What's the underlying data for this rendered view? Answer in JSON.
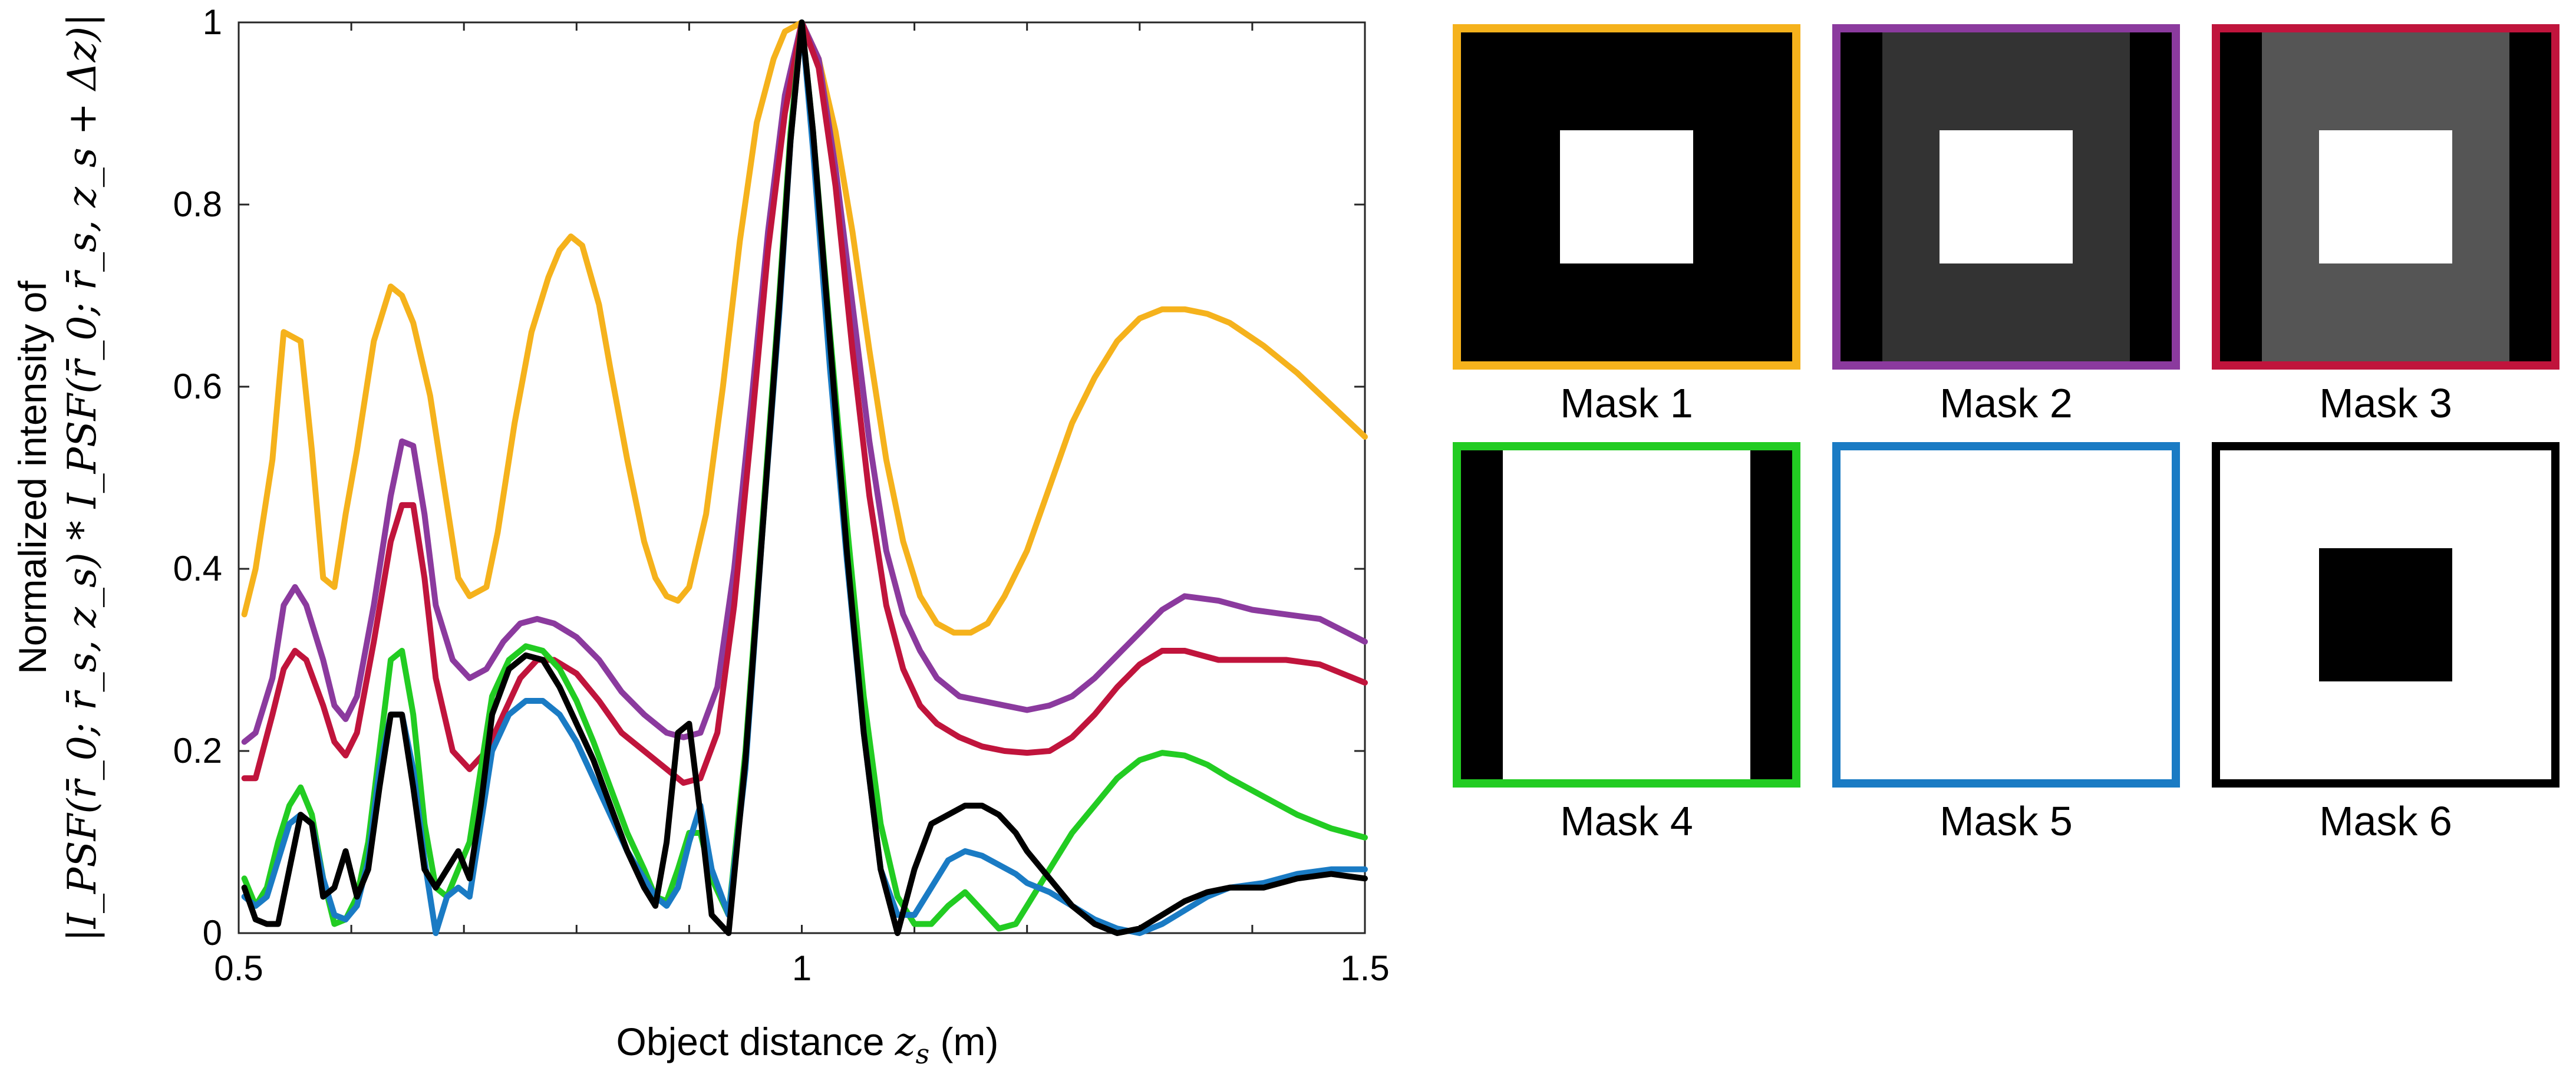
{
  "chart_data": {
    "type": "line",
    "title": "",
    "xlabel": "Object distance z_s (m)",
    "xlabel_parts": [
      "Object distance ",
      "z",
      "s",
      " (m)"
    ],
    "ylabel_line1": "Normalized intensity of",
    "ylabel_line2": "|I_PSF(r̄_0; r̄_s, z_s) * I_PSF(r̄_0; r̄_s, z_s + Δz)|",
    "xlim": [
      0.5,
      1.5
    ],
    "ylim": [
      0,
      1
    ],
    "xticks": [
      0.5,
      1,
      1.5
    ],
    "xtick_labels": [
      "0.5",
      "1",
      "1.5"
    ],
    "yticks": [
      0,
      0.2,
      0.4,
      0.6,
      0.8,
      1
    ],
    "ytick_labels": [
      "0",
      "0.2",
      "0.4",
      "0.6",
      "0.8",
      "1"
    ],
    "grid": false,
    "legend": "right (mask panels)",
    "series": [
      {
        "name": "Mask 1",
        "color": "#F5B21C",
        "x": [
          0.505,
          0.515,
          0.53,
          0.54,
          0.555,
          0.565,
          0.575,
          0.585,
          0.595,
          0.605,
          0.62,
          0.635,
          0.645,
          0.655,
          0.67,
          0.685,
          0.695,
          0.705,
          0.72,
          0.73,
          0.745,
          0.76,
          0.775,
          0.785,
          0.795,
          0.805,
          0.82,
          0.83,
          0.845,
          0.86,
          0.87,
          0.88,
          0.89,
          0.9,
          0.915,
          0.93,
          0.945,
          0.96,
          0.975,
          0.985,
          1.0,
          1.015,
          1.03,
          1.045,
          1.06,
          1.075,
          1.09,
          1.105,
          1.12,
          1.135,
          1.15,
          1.165,
          1.18,
          1.2,
          1.22,
          1.24,
          1.26,
          1.28,
          1.3,
          1.32,
          1.34,
          1.36,
          1.38,
          1.41,
          1.44,
          1.47,
          1.5
        ],
        "y": [
          0.35,
          0.4,
          0.52,
          0.66,
          0.65,
          0.53,
          0.39,
          0.38,
          0.46,
          0.53,
          0.65,
          0.71,
          0.7,
          0.67,
          0.59,
          0.47,
          0.39,
          0.37,
          0.38,
          0.44,
          0.56,
          0.66,
          0.72,
          0.75,
          0.765,
          0.755,
          0.69,
          0.62,
          0.52,
          0.43,
          0.39,
          0.37,
          0.365,
          0.38,
          0.46,
          0.6,
          0.76,
          0.89,
          0.96,
          0.99,
          1.0,
          0.96,
          0.88,
          0.77,
          0.64,
          0.52,
          0.43,
          0.37,
          0.34,
          0.33,
          0.33,
          0.34,
          0.37,
          0.42,
          0.49,
          0.56,
          0.61,
          0.65,
          0.675,
          0.685,
          0.685,
          0.68,
          0.67,
          0.645,
          0.615,
          0.58,
          0.545
        ]
      },
      {
        "name": "Mask 2",
        "color": "#8B3A9E",
        "x": [
          0.505,
          0.515,
          0.53,
          0.54,
          0.55,
          0.56,
          0.575,
          0.585,
          0.595,
          0.605,
          0.62,
          0.635,
          0.645,
          0.655,
          0.665,
          0.675,
          0.69,
          0.705,
          0.72,
          0.735,
          0.75,
          0.765,
          0.78,
          0.8,
          0.82,
          0.84,
          0.86,
          0.88,
          0.895,
          0.91,
          0.925,
          0.94,
          0.955,
          0.97,
          0.985,
          1.0,
          1.015,
          1.03,
          1.045,
          1.06,
          1.075,
          1.09,
          1.105,
          1.12,
          1.14,
          1.16,
          1.18,
          1.2,
          1.22,
          1.24,
          1.26,
          1.28,
          1.3,
          1.32,
          1.34,
          1.37,
          1.4,
          1.43,
          1.46,
          1.5
        ],
        "y": [
          0.21,
          0.22,
          0.28,
          0.36,
          0.38,
          0.36,
          0.3,
          0.25,
          0.235,
          0.26,
          0.36,
          0.48,
          0.54,
          0.535,
          0.46,
          0.36,
          0.3,
          0.28,
          0.29,
          0.32,
          0.34,
          0.345,
          0.34,
          0.325,
          0.3,
          0.265,
          0.24,
          0.22,
          0.215,
          0.22,
          0.27,
          0.4,
          0.58,
          0.77,
          0.92,
          1.0,
          0.96,
          0.84,
          0.69,
          0.54,
          0.42,
          0.35,
          0.31,
          0.28,
          0.26,
          0.255,
          0.25,
          0.245,
          0.25,
          0.26,
          0.28,
          0.305,
          0.33,
          0.355,
          0.37,
          0.365,
          0.355,
          0.35,
          0.345,
          0.32
        ]
      },
      {
        "name": "Mask 3",
        "color": "#C0143C",
        "x": [
          0.505,
          0.515,
          0.53,
          0.54,
          0.55,
          0.56,
          0.575,
          0.585,
          0.595,
          0.605,
          0.62,
          0.635,
          0.645,
          0.655,
          0.665,
          0.675,
          0.69,
          0.705,
          0.72,
          0.735,
          0.75,
          0.765,
          0.78,
          0.8,
          0.82,
          0.84,
          0.86,
          0.88,
          0.895,
          0.91,
          0.925,
          0.94,
          0.955,
          0.97,
          0.985,
          1.0,
          1.015,
          1.03,
          1.045,
          1.06,
          1.075,
          1.09,
          1.105,
          1.12,
          1.14,
          1.16,
          1.18,
          1.2,
          1.22,
          1.24,
          1.26,
          1.28,
          1.3,
          1.32,
          1.34,
          1.37,
          1.4,
          1.43,
          1.46,
          1.5
        ],
        "y": [
          0.17,
          0.17,
          0.24,
          0.29,
          0.31,
          0.3,
          0.25,
          0.21,
          0.195,
          0.22,
          0.32,
          0.43,
          0.47,
          0.47,
          0.39,
          0.28,
          0.2,
          0.18,
          0.2,
          0.24,
          0.28,
          0.3,
          0.3,
          0.285,
          0.255,
          0.22,
          0.2,
          0.18,
          0.165,
          0.17,
          0.22,
          0.36,
          0.55,
          0.75,
          0.9,
          1.0,
          0.95,
          0.82,
          0.64,
          0.48,
          0.36,
          0.29,
          0.25,
          0.23,
          0.215,
          0.205,
          0.2,
          0.198,
          0.2,
          0.215,
          0.24,
          0.27,
          0.295,
          0.31,
          0.31,
          0.3,
          0.3,
          0.3,
          0.295,
          0.275
        ]
      },
      {
        "name": "Mask 4",
        "color": "#22CC22",
        "x": [
          0.505,
          0.515,
          0.525,
          0.535,
          0.545,
          0.555,
          0.565,
          0.575,
          0.585,
          0.595,
          0.605,
          0.615,
          0.625,
          0.635,
          0.645,
          0.655,
          0.665,
          0.675,
          0.685,
          0.695,
          0.705,
          0.715,
          0.725,
          0.74,
          0.755,
          0.77,
          0.785,
          0.8,
          0.815,
          0.83,
          0.845,
          0.86,
          0.87,
          0.88,
          0.89,
          0.9,
          0.91,
          0.92,
          0.935,
          0.95,
          0.965,
          0.98,
          0.99,
          1.0,
          1.01,
          1.025,
          1.04,
          1.055,
          1.07,
          1.085,
          1.1,
          1.115,
          1.13,
          1.145,
          1.16,
          1.175,
          1.19,
          1.2,
          1.22,
          1.24,
          1.26,
          1.28,
          1.3,
          1.32,
          1.34,
          1.36,
          1.38,
          1.41,
          1.44,
          1.47,
          1.5
        ],
        "y": [
          0.06,
          0.03,
          0.05,
          0.1,
          0.14,
          0.16,
          0.13,
          0.06,
          0.01,
          0.015,
          0.04,
          0.1,
          0.2,
          0.3,
          0.31,
          0.24,
          0.12,
          0.05,
          0.04,
          0.07,
          0.1,
          0.18,
          0.26,
          0.3,
          0.315,
          0.31,
          0.29,
          0.255,
          0.21,
          0.16,
          0.11,
          0.07,
          0.04,
          0.035,
          0.07,
          0.11,
          0.11,
          0.06,
          0.02,
          0.2,
          0.45,
          0.7,
          0.88,
          1.0,
          0.88,
          0.66,
          0.45,
          0.26,
          0.12,
          0.04,
          0.01,
          0.01,
          0.03,
          0.045,
          0.025,
          0.005,
          0.01,
          0.03,
          0.07,
          0.11,
          0.14,
          0.17,
          0.19,
          0.198,
          0.195,
          0.185,
          0.17,
          0.15,
          0.13,
          0.115,
          0.105
        ]
      },
      {
        "name": "Mask 5",
        "color": "#1A7BC4",
        "x": [
          0.505,
          0.515,
          0.525,
          0.535,
          0.545,
          0.555,
          0.565,
          0.575,
          0.585,
          0.595,
          0.605,
          0.615,
          0.625,
          0.635,
          0.645,
          0.655,
          0.665,
          0.675,
          0.685,
          0.695,
          0.705,
          0.715,
          0.725,
          0.74,
          0.755,
          0.77,
          0.785,
          0.8,
          0.815,
          0.83,
          0.845,
          0.86,
          0.87,
          0.88,
          0.89,
          0.9,
          0.91,
          0.92,
          0.935,
          0.95,
          0.965,
          0.98,
          0.99,
          1.0,
          1.01,
          1.025,
          1.04,
          1.055,
          1.07,
          1.085,
          1.1,
          1.115,
          1.13,
          1.145,
          1.16,
          1.175,
          1.19,
          1.2,
          1.22,
          1.24,
          1.26,
          1.28,
          1.3,
          1.32,
          1.34,
          1.36,
          1.38,
          1.41,
          1.44,
          1.47,
          1.5
        ],
        "y": [
          0.04,
          0.03,
          0.04,
          0.08,
          0.12,
          0.13,
          0.12,
          0.06,
          0.02,
          0.015,
          0.03,
          0.08,
          0.18,
          0.24,
          0.24,
          0.18,
          0.08,
          0.0,
          0.04,
          0.05,
          0.04,
          0.12,
          0.2,
          0.24,
          0.255,
          0.255,
          0.24,
          0.21,
          0.17,
          0.13,
          0.09,
          0.06,
          0.04,
          0.03,
          0.05,
          0.1,
          0.14,
          0.07,
          0.02,
          0.18,
          0.44,
          0.68,
          0.87,
          1.0,
          0.86,
          0.62,
          0.41,
          0.22,
          0.07,
          0.02,
          0.02,
          0.05,
          0.08,
          0.09,
          0.085,
          0.075,
          0.065,
          0.055,
          0.045,
          0.03,
          0.015,
          0.005,
          0.0,
          0.01,
          0.025,
          0.04,
          0.05,
          0.055,
          0.065,
          0.07,
          0.07
        ]
      },
      {
        "name": "Mask 6",
        "color": "#000000",
        "x": [
          0.505,
          0.515,
          0.525,
          0.535,
          0.545,
          0.555,
          0.565,
          0.575,
          0.585,
          0.595,
          0.605,
          0.615,
          0.625,
          0.635,
          0.645,
          0.655,
          0.665,
          0.675,
          0.685,
          0.695,
          0.705,
          0.715,
          0.725,
          0.74,
          0.755,
          0.77,
          0.785,
          0.8,
          0.815,
          0.83,
          0.845,
          0.86,
          0.87,
          0.88,
          0.89,
          0.9,
          0.91,
          0.92,
          0.935,
          0.95,
          0.965,
          0.98,
          0.99,
          1.0,
          1.01,
          1.025,
          1.04,
          1.055,
          1.07,
          1.085,
          1.1,
          1.115,
          1.13,
          1.145,
          1.16,
          1.175,
          1.19,
          1.2,
          1.22,
          1.24,
          1.26,
          1.28,
          1.3,
          1.32,
          1.34,
          1.36,
          1.38,
          1.41,
          1.44,
          1.47,
          1.5
        ],
        "y": [
          0.05,
          0.015,
          0.01,
          0.01,
          0.07,
          0.13,
          0.12,
          0.04,
          0.05,
          0.09,
          0.04,
          0.07,
          0.16,
          0.24,
          0.24,
          0.16,
          0.07,
          0.05,
          0.07,
          0.09,
          0.06,
          0.14,
          0.24,
          0.29,
          0.305,
          0.3,
          0.27,
          0.23,
          0.19,
          0.14,
          0.09,
          0.05,
          0.03,
          0.1,
          0.22,
          0.23,
          0.13,
          0.02,
          0.0,
          0.19,
          0.44,
          0.69,
          0.87,
          1.0,
          0.88,
          0.65,
          0.42,
          0.22,
          0.07,
          0.0,
          0.07,
          0.12,
          0.13,
          0.14,
          0.14,
          0.13,
          0.11,
          0.09,
          0.06,
          0.03,
          0.01,
          0.0,
          0.005,
          0.02,
          0.035,
          0.045,
          0.05,
          0.05,
          0.06,
          0.065,
          0.06
        ]
      }
    ]
  },
  "masks": [
    {
      "label": "Mask 1",
      "border_color": "#F5B21C",
      "outer_fill": "#000000",
      "center_fill": "#000000",
      "square_fill": "#ffffff",
      "has_side_bars": false,
      "has_square": true
    },
    {
      "label": "Mask 2",
      "border_color": "#8B3A9E",
      "outer_fill": "#000000",
      "center_fill": "#333333",
      "square_fill": "#ffffff",
      "has_side_bars": true,
      "has_square": true
    },
    {
      "label": "Mask 3",
      "border_color": "#C0143C",
      "outer_fill": "#000000",
      "center_fill": "#555555",
      "square_fill": "#ffffff",
      "has_side_bars": true,
      "has_square": true
    },
    {
      "label": "Mask 4",
      "border_color": "#22CC22",
      "outer_fill": "#000000",
      "center_fill": "#ffffff",
      "square_fill": "#ffffff",
      "has_side_bars": true,
      "has_square": false
    },
    {
      "label": "Mask 5",
      "border_color": "#1A7BC4",
      "outer_fill": "#ffffff",
      "center_fill": "#ffffff",
      "square_fill": "#ffffff",
      "has_side_bars": false,
      "has_square": false
    },
    {
      "label": "Mask 6",
      "border_color": "#000000",
      "outer_fill": "#ffffff",
      "center_fill": "#ffffff",
      "square_fill": "#000000",
      "has_side_bars": false,
      "has_square": true
    }
  ]
}
